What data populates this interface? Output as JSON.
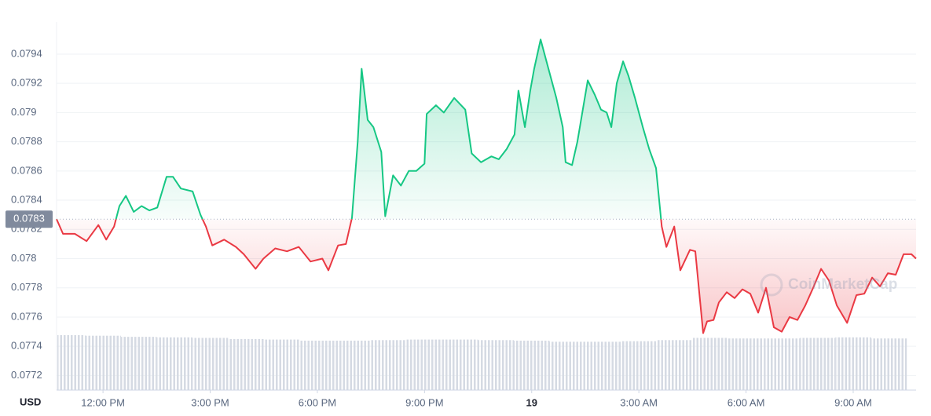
{
  "chart_data": {
    "type": "baseline-line",
    "currency_label": "USD",
    "watermark": "CoinMarketCap",
    "baseline": {
      "value": 0.07827,
      "label": "0.0783"
    },
    "up_color": "#16c784",
    "down_color": "#ea3943",
    "x": [
      10.7,
      10.88,
      11.21,
      11.54,
      11.87,
      12.09,
      12.31,
      12.46,
      12.64,
      12.86,
      13.08,
      13.3,
      13.52,
      13.78,
      13.96,
      14.18,
      14.51,
      14.73,
      14.88,
      15.06,
      15.39,
      15.72,
      15.94,
      16.27,
      16.49,
      16.82,
      17.15,
      17.48,
      17.81,
      18.14,
      18.31,
      18.58,
      18.8,
      18.97,
      19.13,
      19.24,
      19.41,
      19.57,
      19.79,
      19.9,
      20.12,
      20.34,
      20.56,
      20.77,
      21.0,
      21.06,
      21.32,
      21.54,
      21.83,
      22.14,
      22.32,
      22.58,
      22.87,
      23.08,
      23.3,
      23.52,
      23.63,
      23.81,
      23.96,
      24.07,
      24.25,
      24.47,
      24.69,
      24.87,
      24.95,
      25.13,
      25.28,
      25.57,
      25.77,
      25.94,
      26.1,
      26.23,
      26.38,
      26.56,
      26.71,
      26.89,
      27.11,
      27.29,
      27.48,
      27.64,
      27.77,
      27.99,
      28.16,
      28.43,
      28.58,
      28.8,
      28.91,
      29.09,
      29.24,
      29.46,
      29.68,
      29.9,
      30.12,
      30.34,
      30.56,
      30.78,
      31.0,
      31.22,
      31.44,
      31.66,
      31.88,
      32.1,
      32.32,
      32.54,
      32.83,
      33.09,
      33.31,
      33.53,
      33.75,
      33.97,
      34.19,
      34.41,
      34.63,
      34.76
    ],
    "values": [
      0.07827,
      0.07817,
      0.07817,
      0.07812,
      0.07823,
      0.07813,
      0.07822,
      0.07836,
      0.07843,
      0.07832,
      0.07836,
      0.07833,
      0.07835,
      0.07856,
      0.07856,
      0.07848,
      0.07846,
      0.0783,
      0.07822,
      0.07809,
      0.07813,
      0.07808,
      0.07803,
      0.07793,
      0.078,
      0.07807,
      0.07805,
      0.07808,
      0.07798,
      0.078,
      0.07792,
      0.07809,
      0.0781,
      0.07828,
      0.0788,
      0.0793,
      0.07895,
      0.0789,
      0.07873,
      0.07829,
      0.07857,
      0.0785,
      0.0786,
      0.0786,
      0.07865,
      0.07899,
      0.07905,
      0.079,
      0.0791,
      0.07902,
      0.07872,
      0.07866,
      0.0787,
      0.07868,
      0.07875,
      0.07885,
      0.07915,
      0.0789,
      0.07915,
      0.0793,
      0.0795,
      0.0793,
      0.0791,
      0.0789,
      0.07866,
      0.07864,
      0.0788,
      0.07922,
      0.07912,
      0.07902,
      0.079,
      0.0789,
      0.0792,
      0.07935,
      0.07925,
      0.0791,
      0.0789,
      0.07875,
      0.07862,
      0.07822,
      0.07808,
      0.07822,
      0.07792,
      0.07806,
      0.07805,
      0.07749,
      0.07757,
      0.07758,
      0.0777,
      0.07777,
      0.07773,
      0.07779,
      0.07776,
      0.07763,
      0.0778,
      0.07753,
      0.0775,
      0.0776,
      0.07758,
      0.07768,
      0.0778,
      0.07793,
      0.07785,
      0.07768,
      0.07756,
      0.07775,
      0.07776,
      0.07787,
      0.07781,
      0.0779,
      0.07789,
      0.07803,
      0.07803,
      0.078
    ],
    "volume": {
      "color": "#d5dae3",
      "vlim": [
        0,
        100
      ],
      "x": [
        11,
        12,
        13,
        14,
        15,
        16,
        17,
        18,
        19,
        20,
        21,
        22,
        23,
        24,
        25,
        26,
        27,
        28,
        29,
        30,
        31,
        32,
        33,
        34
      ],
      "values": [
        100,
        99,
        97,
        96,
        95,
        93,
        92,
        90,
        90,
        91,
        92,
        92,
        91,
        90,
        88,
        88,
        89,
        91,
        95,
        94,
        94,
        95,
        96,
        94
      ]
    },
    "xlim": [
      10.7,
      34.76
    ],
    "xticks": [
      {
        "value": 12,
        "label": "12:00 PM"
      },
      {
        "value": 15,
        "label": "3:00 PM"
      },
      {
        "value": 18,
        "label": "6:00 PM"
      },
      {
        "value": 21,
        "label": "9:00 PM"
      },
      {
        "value": 24,
        "label": "19"
      },
      {
        "value": 27,
        "label": "3:00 AM"
      },
      {
        "value": 30,
        "label": "6:00 AM"
      },
      {
        "value": 33,
        "label": "9:00 AM"
      }
    ],
    "ylim": [
      0.0771,
      0.07962
    ],
    "yticks": [
      0.0772,
      0.0774,
      0.0776,
      0.0778,
      0.078,
      0.0782,
      0.0784,
      0.0786,
      0.0788,
      0.079,
      0.0792,
      0.0794
    ],
    "grid": true
  }
}
